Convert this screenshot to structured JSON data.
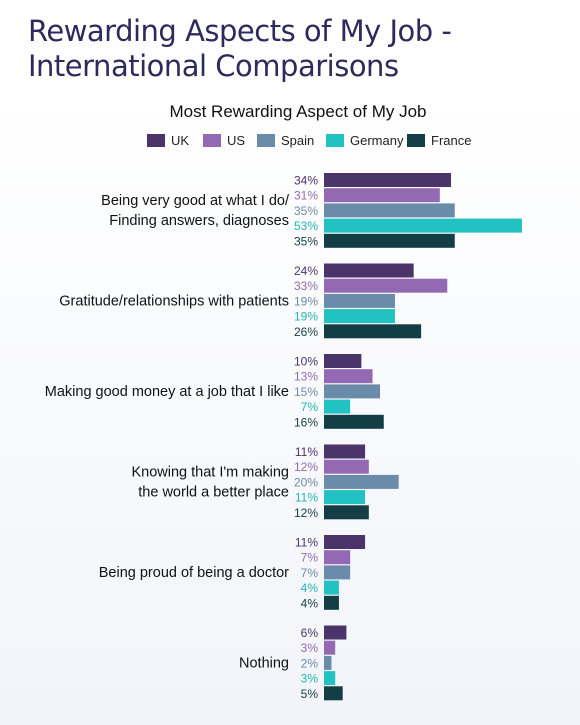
{
  "page": {
    "title_line1": "Rewarding Aspects of My Job -",
    "title_line2": "International Comparisons"
  },
  "chart_data": {
    "type": "bar",
    "orientation": "horizontal",
    "title": "Most Rewarding Aspect of My Job",
    "legend_position": "top",
    "grid": false,
    "xlim": [
      0,
      53
    ],
    "value_suffix": "%",
    "categories": [
      [
        "Being very good at what I do/",
        "Finding answers, diagnoses"
      ],
      [
        "Gratitude/relationships with patients"
      ],
      [
        "Making good money at a job that I like"
      ],
      [
        "Knowing that I'm making",
        "the world a better place"
      ],
      [
        "Being proud of being a doctor"
      ],
      [
        "Nothing"
      ]
    ],
    "series": [
      {
        "name": "UK",
        "color": "#4a3469",
        "label_color": "#4a3469",
        "values": [
          34,
          24,
          10,
          11,
          11,
          6
        ]
      },
      {
        "name": "US",
        "color": "#9369b3",
        "label_color": "#9369b3",
        "values": [
          31,
          33,
          13,
          12,
          7,
          3
        ]
      },
      {
        "name": "Spain",
        "color": "#6b8bab",
        "label_color": "#6b8bab",
        "values": [
          35,
          19,
          15,
          20,
          7,
          2
        ]
      },
      {
        "name": "Germany",
        "color": "#22c2c2",
        "label_color": "#22b5b5",
        "values": [
          53,
          19,
          7,
          11,
          4,
          3
        ]
      },
      {
        "name": "France",
        "color": "#143e46",
        "label_color": "#143e46",
        "values": [
          35,
          26,
          16,
          12,
          4,
          5
        ]
      }
    ]
  }
}
